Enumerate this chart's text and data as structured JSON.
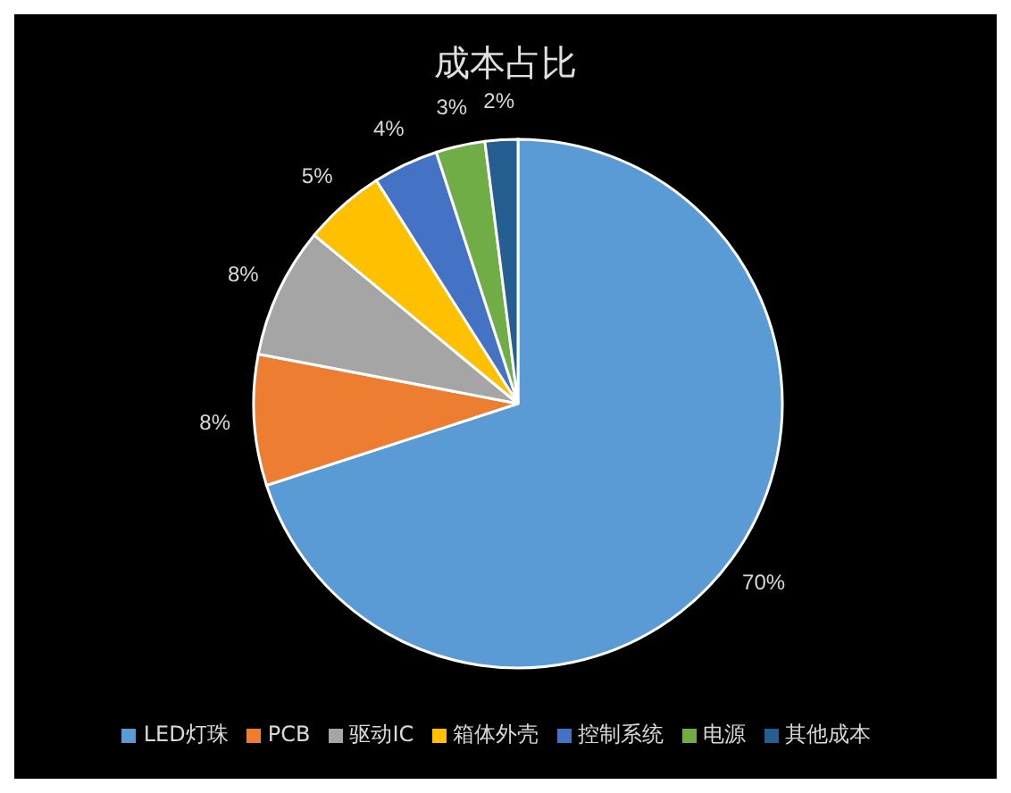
{
  "chart_data": {
    "type": "pie",
    "title": "成本占比",
    "categories": [
      "LED灯珠",
      "PCB",
      "驱动IC",
      "箱体外壳",
      "控制系统",
      "电源",
      "其他成本"
    ],
    "values": [
      70,
      8,
      8,
      5,
      4,
      3,
      2
    ],
    "colors": [
      "#5b9bd5",
      "#ed7d31",
      "#a5a5a5",
      "#ffc000",
      "#4472c4",
      "#70ad47",
      "#255e91"
    ],
    "value_labels": [
      "70%",
      "8%",
      "8%",
      "5%",
      "4%",
      "3%",
      "2%"
    ],
    "legend": "bottom"
  }
}
